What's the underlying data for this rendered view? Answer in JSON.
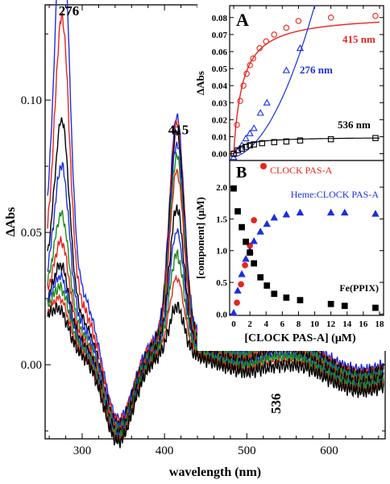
{
  "colors": {
    "red": "#e8241c",
    "blue": "#1c2ee0",
    "black": "#000000",
    "green": "#1e8c1e"
  },
  "chart_data": [
    {
      "id": "main",
      "type": "line",
      "xlabel": "wavelength (nm)",
      "ylabel": "ΔAbs",
      "xlim": [
        255,
        668
      ],
      "ylim": [
        -0.028,
        0.136
      ],
      "xticks": [
        300,
        400,
        500,
        600
      ],
      "yticks": [
        0.0,
        0.05,
        0.1
      ],
      "ytick_labels": [
        "0.00",
        "0.05",
        "0.10"
      ],
      "annotations": [
        {
          "text": "276",
          "x": 276,
          "y": 0.132
        },
        {
          "text": "415",
          "x": 415,
          "y": 0.087
        },
        {
          "text": "536",
          "x": 536,
          "y": -0.011
        }
      ],
      "series": [
        {
          "color": "blue",
          "p276": 0.127,
          "p415": 0.082,
          "p536": 0.009
        },
        {
          "color": "red",
          "p276": 0.094,
          "p415": 0.08,
          "p536": 0.0085
        },
        {
          "color": "black",
          "p276": 0.062,
          "p415": 0.078,
          "p536": 0.008
        },
        {
          "color": "blue",
          "p276": 0.048,
          "p415": 0.074,
          "p536": 0.0075
        },
        {
          "color": "green",
          "p276": 0.033,
          "p415": 0.07,
          "p536": 0.007
        },
        {
          "color": "red",
          "p276": 0.025,
          "p415": 0.065,
          "p536": 0.0065
        },
        {
          "color": "black",
          "p276": 0.018,
          "p415": 0.052,
          "p536": 0.0055
        },
        {
          "color": "blue",
          "p276": 0.015,
          "p415": 0.044,
          "p536": 0.005
        },
        {
          "color": "green",
          "p276": 0.012,
          "p415": 0.036,
          "p536": 0.0045
        },
        {
          "color": "red",
          "p276": 0.009,
          "p415": 0.028,
          "p536": 0.004
        },
        {
          "color": "black",
          "p276": 0.006,
          "p415": 0.018,
          "p536": 0.003
        }
      ]
    },
    {
      "id": "inset_A",
      "type": "scatter",
      "panel_label": "A",
      "ylabel": "ΔAbs",
      "xlim": [
        -0.5,
        18.5
      ],
      "ylim": [
        -0.004,
        0.087
      ],
      "yticks": [
        0.0,
        0.01,
        0.02,
        0.03,
        0.04,
        0.05,
        0.06,
        0.07,
        0.08
      ],
      "ytick_labels": [
        "0.00",
        "0.01",
        "0.02",
        "0.03",
        "0.04",
        "0.05",
        "0.06",
        "0.07",
        "0.08"
      ],
      "series": [
        {
          "name": "415 nm",
          "color": "red",
          "marker": "circle",
          "x": [
            0,
            0.4,
            0.8,
            1.2,
            1.6,
            2.0,
            2.4,
            3.2,
            4.0,
            5.0,
            6.5,
            8.0,
            12.0,
            17.5
          ],
          "y": [
            0.0,
            0.017,
            0.031,
            0.04,
            0.047,
            0.052,
            0.056,
            0.062,
            0.066,
            0.07,
            0.074,
            0.078,
            0.08,
            0.081
          ]
        },
        {
          "name": "276 nm",
          "color": "blue",
          "marker": "triangle",
          "x": [
            0,
            0.5,
            1.0,
            1.5,
            2.0,
            2.5,
            3.3,
            4.1,
            6.5,
            8.2
          ],
          "y": [
            -0.002,
            0.002,
            0.005,
            0.009,
            0.012,
            0.015,
            0.024,
            0.03,
            0.049,
            0.062
          ]
        },
        {
          "name": "536 nm",
          "color": "black",
          "marker": "square",
          "x": [
            0,
            0.5,
            1.0,
            1.5,
            2.0,
            2.5,
            3.5,
            5.0,
            6.5,
            8.2,
            12.0,
            17.5
          ],
          "y": [
            0.0,
            0.002,
            0.003,
            0.004,
            0.005,
            0.0055,
            0.0062,
            0.0068,
            0.0072,
            0.0078,
            0.0085,
            0.0092
          ]
        }
      ]
    },
    {
      "id": "inset_B",
      "type": "scatter",
      "panel_label": "B",
      "xlabel": "[CLOCK PAS-A] (μM)",
      "ylabel": "[component] (μM)",
      "xlim": [
        -0.5,
        18.5
      ],
      "ylim": [
        -0.02,
        2.42
      ],
      "xticks": [
        0,
        2,
        4,
        6,
        8,
        10,
        12,
        14,
        16,
        18
      ],
      "yticks": [
        0.0,
        0.5,
        1.0,
        1.5,
        2.0
      ],
      "ytick_labels": [
        "0.0",
        "0.5",
        "1.0",
        "1.5",
        "2.0"
      ],
      "series": [
        {
          "name": "CLOCK PAS-A",
          "color": "red",
          "marker": "circle",
          "x": [
            0.4,
            0.9,
            1.4,
            2.0,
            2.5
          ],
          "y": [
            0.18,
            0.47,
            0.77,
            1.08,
            1.48
          ]
        },
        {
          "name": "Heme:CLOCK PAS-A",
          "color": "blue",
          "marker": "triangle",
          "x": [
            0,
            0.5,
            1.0,
            1.5,
            2.0,
            2.5,
            3.3,
            4.1,
            5.0,
            6.5,
            8.2,
            12.0,
            13.7,
            17.5
          ],
          "y": [
            0.02,
            0.37,
            0.63,
            0.87,
            1.0,
            1.15,
            1.3,
            1.42,
            1.52,
            1.57,
            1.6,
            1.6,
            1.6,
            1.58
          ]
        },
        {
          "name": "Fe(PPIX)",
          "color": "black",
          "marker": "square",
          "x": [
            0,
            0.5,
            1.0,
            1.5,
            2.0,
            2.5,
            3.3,
            4.1,
            5.0,
            6.5,
            8.2,
            12.0,
            13.7,
            17.5
          ],
          "y": [
            1.98,
            1.62,
            1.37,
            1.14,
            0.97,
            0.8,
            0.58,
            0.45,
            0.32,
            0.26,
            0.22,
            0.16,
            0.13,
            0.1
          ]
        }
      ]
    }
  ]
}
